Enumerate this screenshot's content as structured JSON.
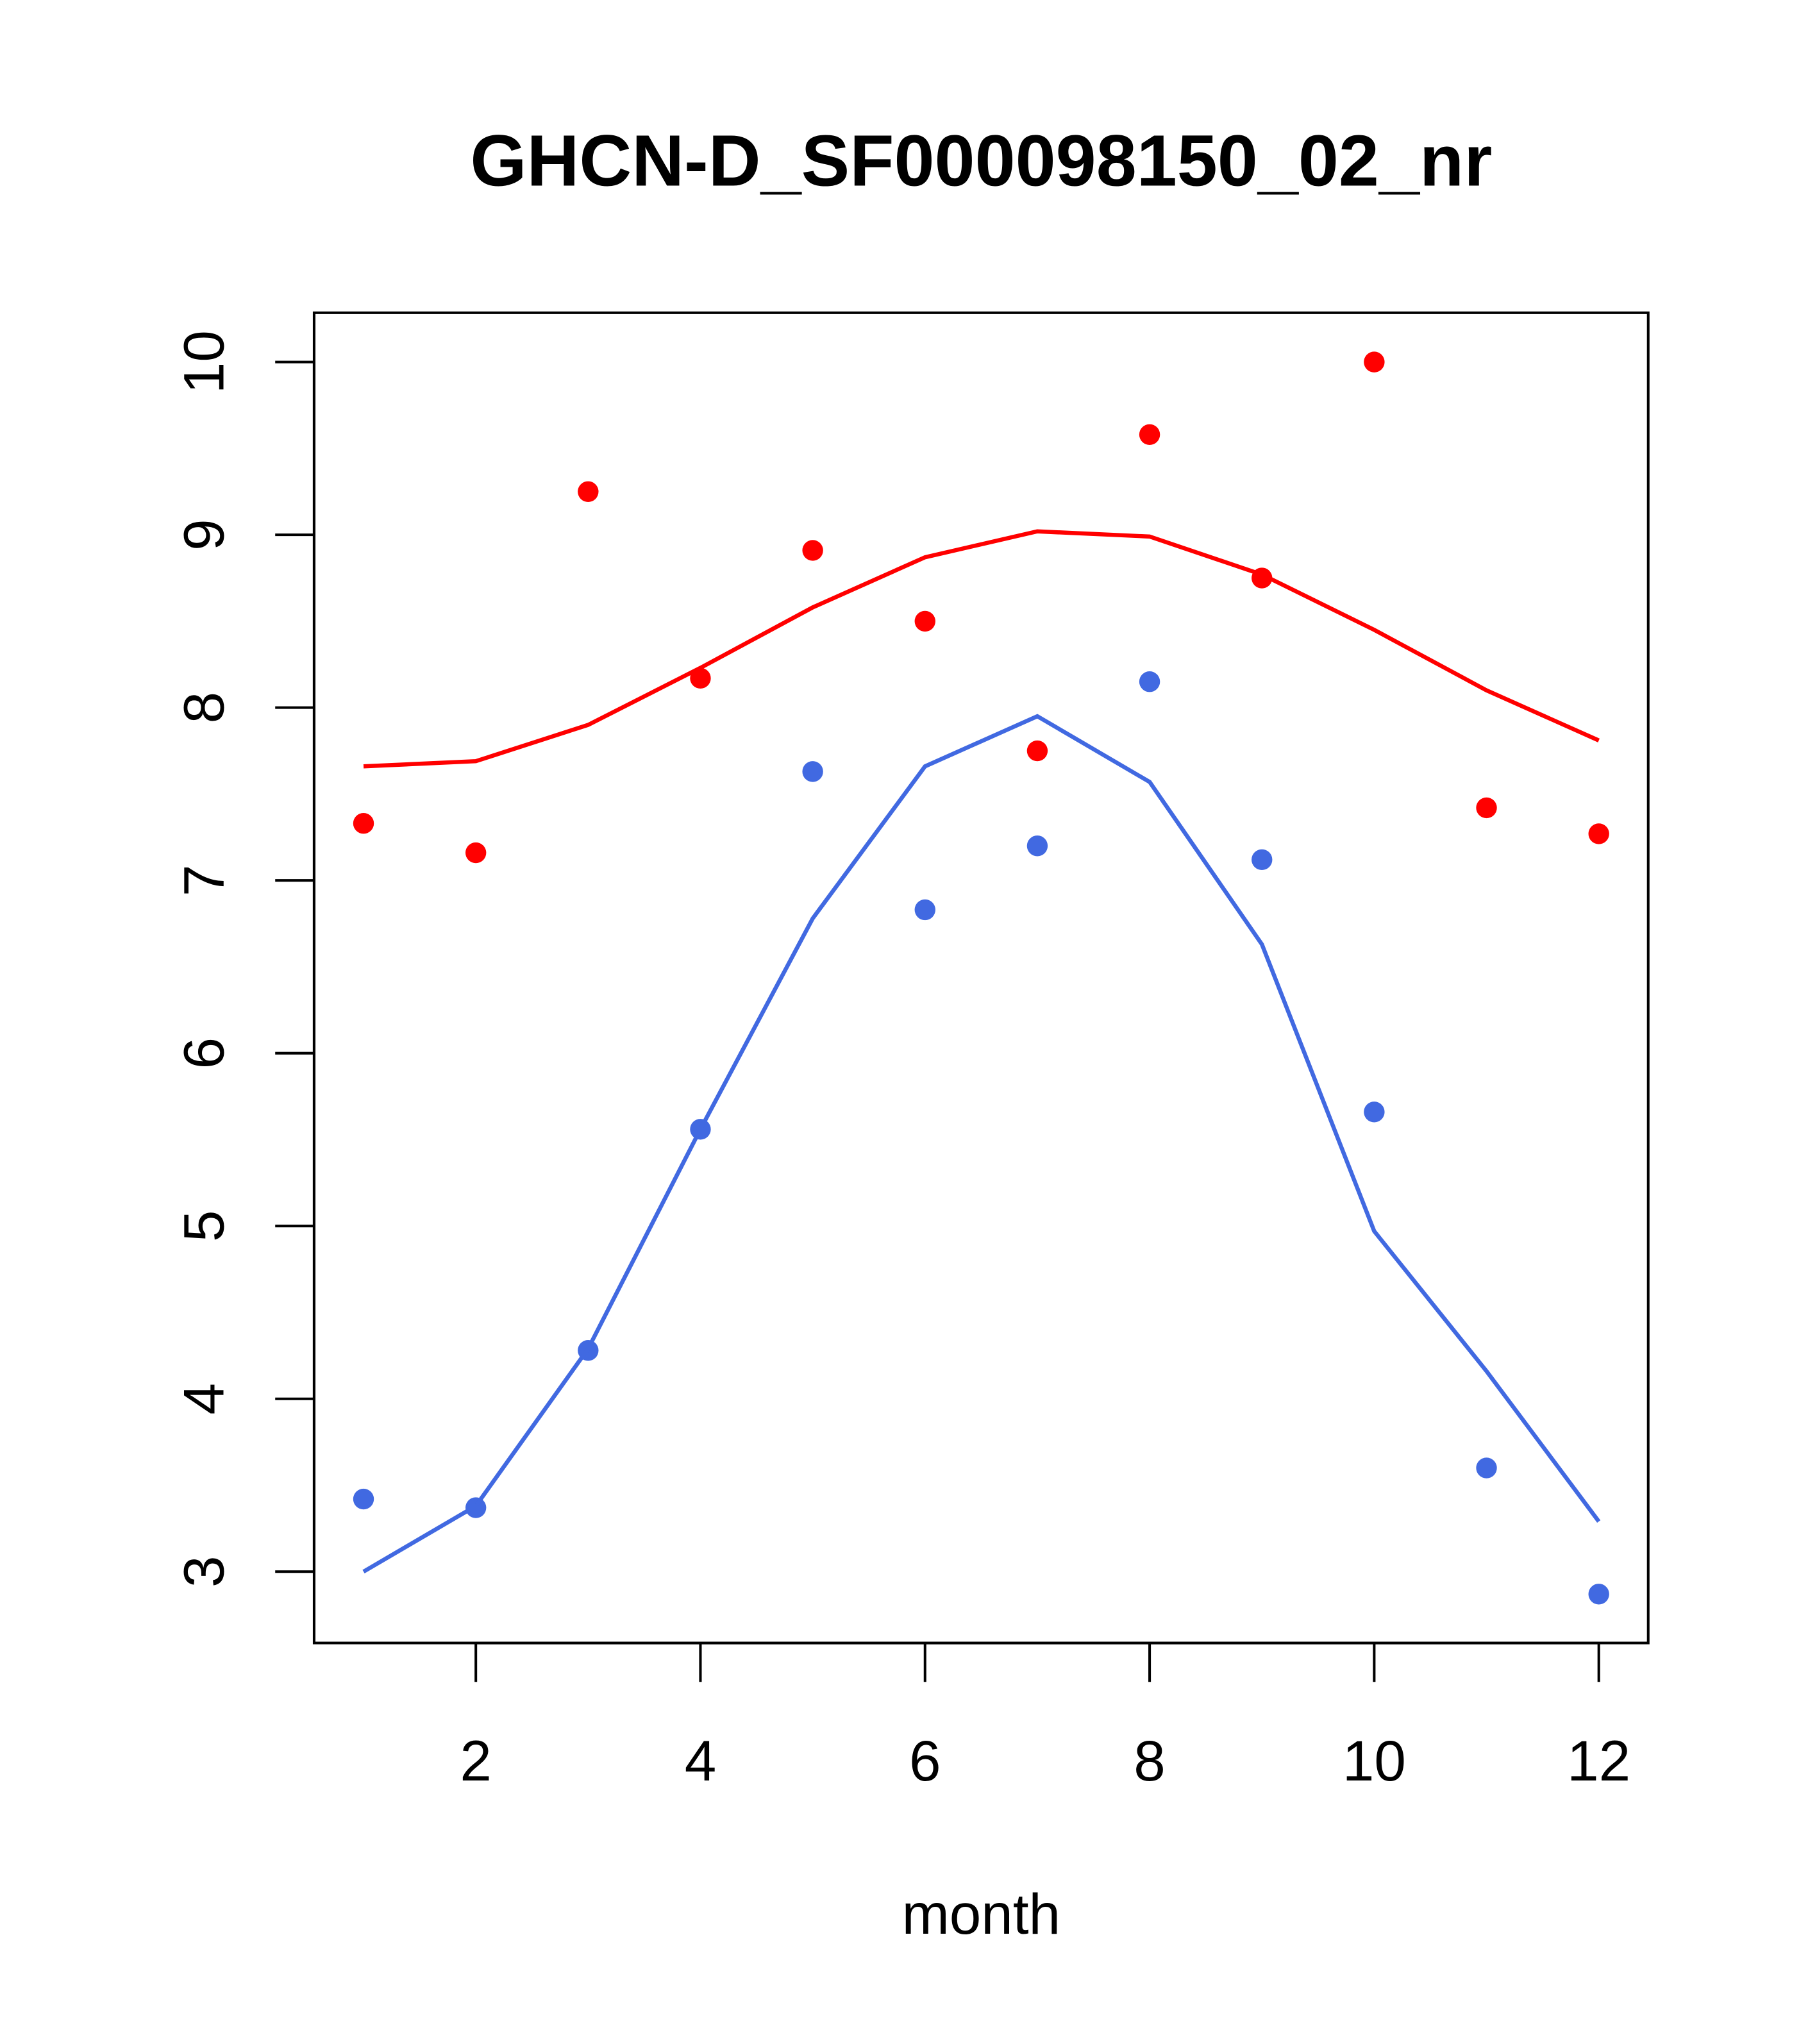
{
  "chart_data": {
    "type": "scatter",
    "title": "GHCN-D_SF000098150_02_nr",
    "xlabel": "month",
    "ylabel": "",
    "xlim": [
      0.56,
      12.44
    ],
    "ylim": [
      2.587,
      10.285
    ],
    "xticks": [
      2,
      4,
      6,
      8,
      10,
      12
    ],
    "yticks": [
      3,
      4,
      5,
      6,
      7,
      8,
      9,
      10
    ],
    "grid": false,
    "x": [
      1,
      2,
      3,
      4,
      5,
      6,
      7,
      8,
      9,
      10,
      11,
      12
    ],
    "series": [
      {
        "name": "red points",
        "kind": "points",
        "color": "#ff0000",
        "values": [
          7.33,
          7.16,
          9.25,
          8.17,
          8.91,
          8.5,
          7.75,
          9.58,
          8.75,
          10.0,
          7.42,
          7.27
        ]
      },
      {
        "name": "red line",
        "kind": "line",
        "color": "#ff0000",
        "values": [
          7.66,
          7.69,
          7.9,
          8.23,
          8.58,
          8.87,
          9.02,
          8.99,
          8.77,
          8.45,
          8.1,
          7.81
        ]
      },
      {
        "name": "blue points",
        "kind": "points",
        "color": "#4169e1",
        "values": [
          3.42,
          3.37,
          4.28,
          5.56,
          7.63,
          6.83,
          7.2,
          8.15,
          7.12,
          5.66,
          3.6,
          2.87
        ]
      },
      {
        "name": "blue line",
        "kind": "line",
        "color": "#4169e1",
        "values": [
          3.0,
          3.38,
          4.29,
          5.56,
          6.78,
          7.66,
          7.95,
          7.57,
          6.63,
          4.97,
          4.16,
          3.29
        ]
      }
    ]
  }
}
